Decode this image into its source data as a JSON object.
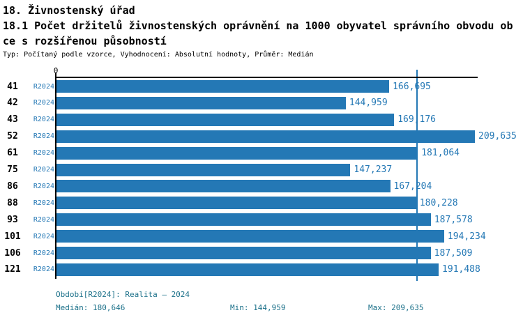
{
  "header": {
    "section_title": "18. Živnostenský úřad",
    "metric_title_line1": "18.1 Počet držitelů živnostenských oprávnění na 1000 obyvatel správního obvodu ob",
    "metric_title_line2": "ce s rozšířenou působností",
    "meta": "Typ: Počítaný podle vzorce, Vyhodnocení: Absolutní hodnoty, Průměr: Medián"
  },
  "chart_data": {
    "type": "bar",
    "orientation": "horizontal",
    "title": "18.1 Počet držitelů živnostenských oprávnění na 1000 obyvatel správního obvodu obce s rozšířenou působností",
    "categories": [
      "41",
      "42",
      "43",
      "52",
      "61",
      "75",
      "86",
      "88",
      "93",
      "101",
      "106",
      "121"
    ],
    "series_label": "R2024",
    "values": [
      166.695,
      144.959,
      169.176,
      209.635,
      181.064,
      147.237,
      167.204,
      180.228,
      187.578,
      194.234,
      187.509,
      191.488
    ],
    "value_labels": [
      "166,695",
      "144,959",
      "169,176",
      "209,635",
      "181,064",
      "147,237",
      "167,204",
      "180,228",
      "187,578",
      "194,234",
      "187,509",
      "191,488"
    ],
    "x_axis": {
      "zero_label": "0",
      "min": 0,
      "max": 209.635
    },
    "median": {
      "value": 180.646,
      "label": "180,646"
    },
    "grid": false,
    "legend_position": "none"
  },
  "footer": {
    "period": "Období[R2024]: Realita – 2024",
    "median": "Medián: 180,646",
    "min": "Min: 144,959",
    "max": "Max: 209,635"
  },
  "colors": {
    "bar": "#2478b5",
    "blue_text": "#2478b5",
    "footer_text": "#1b7089",
    "axis": "#000000",
    "median_line": "#2478b5"
  }
}
